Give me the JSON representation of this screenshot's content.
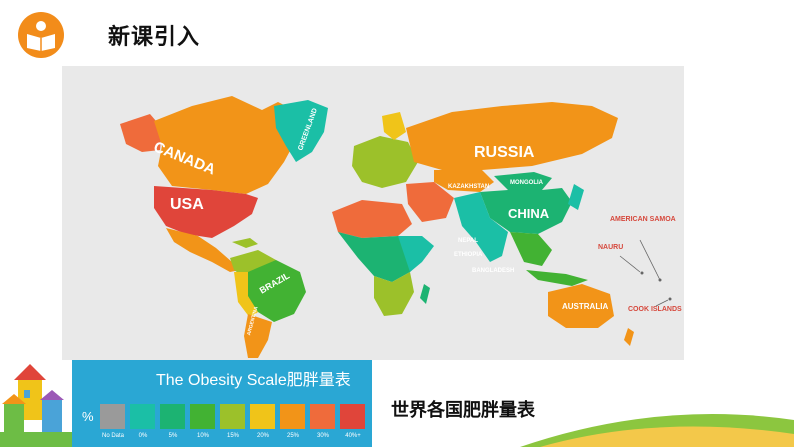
{
  "header": {
    "title": "新课引入",
    "icon": "book-reader-icon"
  },
  "map": {
    "labels": {
      "canada": "CANADA",
      "usa": "USA",
      "russia": "RUSSIA",
      "china": "CHINA",
      "greenland": "GREENLAND",
      "brazil": "BRAZIL",
      "argentina": "ARGENTINA",
      "australia": "AUSTRALIA",
      "kazakhstan": "KAZAKHSTAN",
      "mongolia": "MONGOLIA",
      "nepal": "NEPAL",
      "ethiopia": "ETHIOPIA",
      "bangladesh": "BANGLADESH"
    },
    "callouts": {
      "american_samoa": "AMERICAN SAMOA",
      "nauru": "NAURU",
      "cook_islands": "COOK ISLANDS"
    }
  },
  "legend": {
    "title": "The Obesity Scale肥胖量表",
    "percent_symbol": "%",
    "items": [
      {
        "label": "No Data",
        "color": "#9a9a9a"
      },
      {
        "label": "0%",
        "color": "#1bbfa6"
      },
      {
        "label": "5%",
        "color": "#1cb372"
      },
      {
        "label": "10%",
        "color": "#42b233"
      },
      {
        "label": "15%",
        "color": "#9cc12a"
      },
      {
        "label": "20%",
        "color": "#f0c419"
      },
      {
        "label": "25%",
        "color": "#f29418"
      },
      {
        "label": "30%",
        "color": "#ef6b3b"
      },
      {
        "label": "40%+",
        "color": "#e0453a"
      }
    ]
  },
  "caption": "世界各国肥胖量表"
}
